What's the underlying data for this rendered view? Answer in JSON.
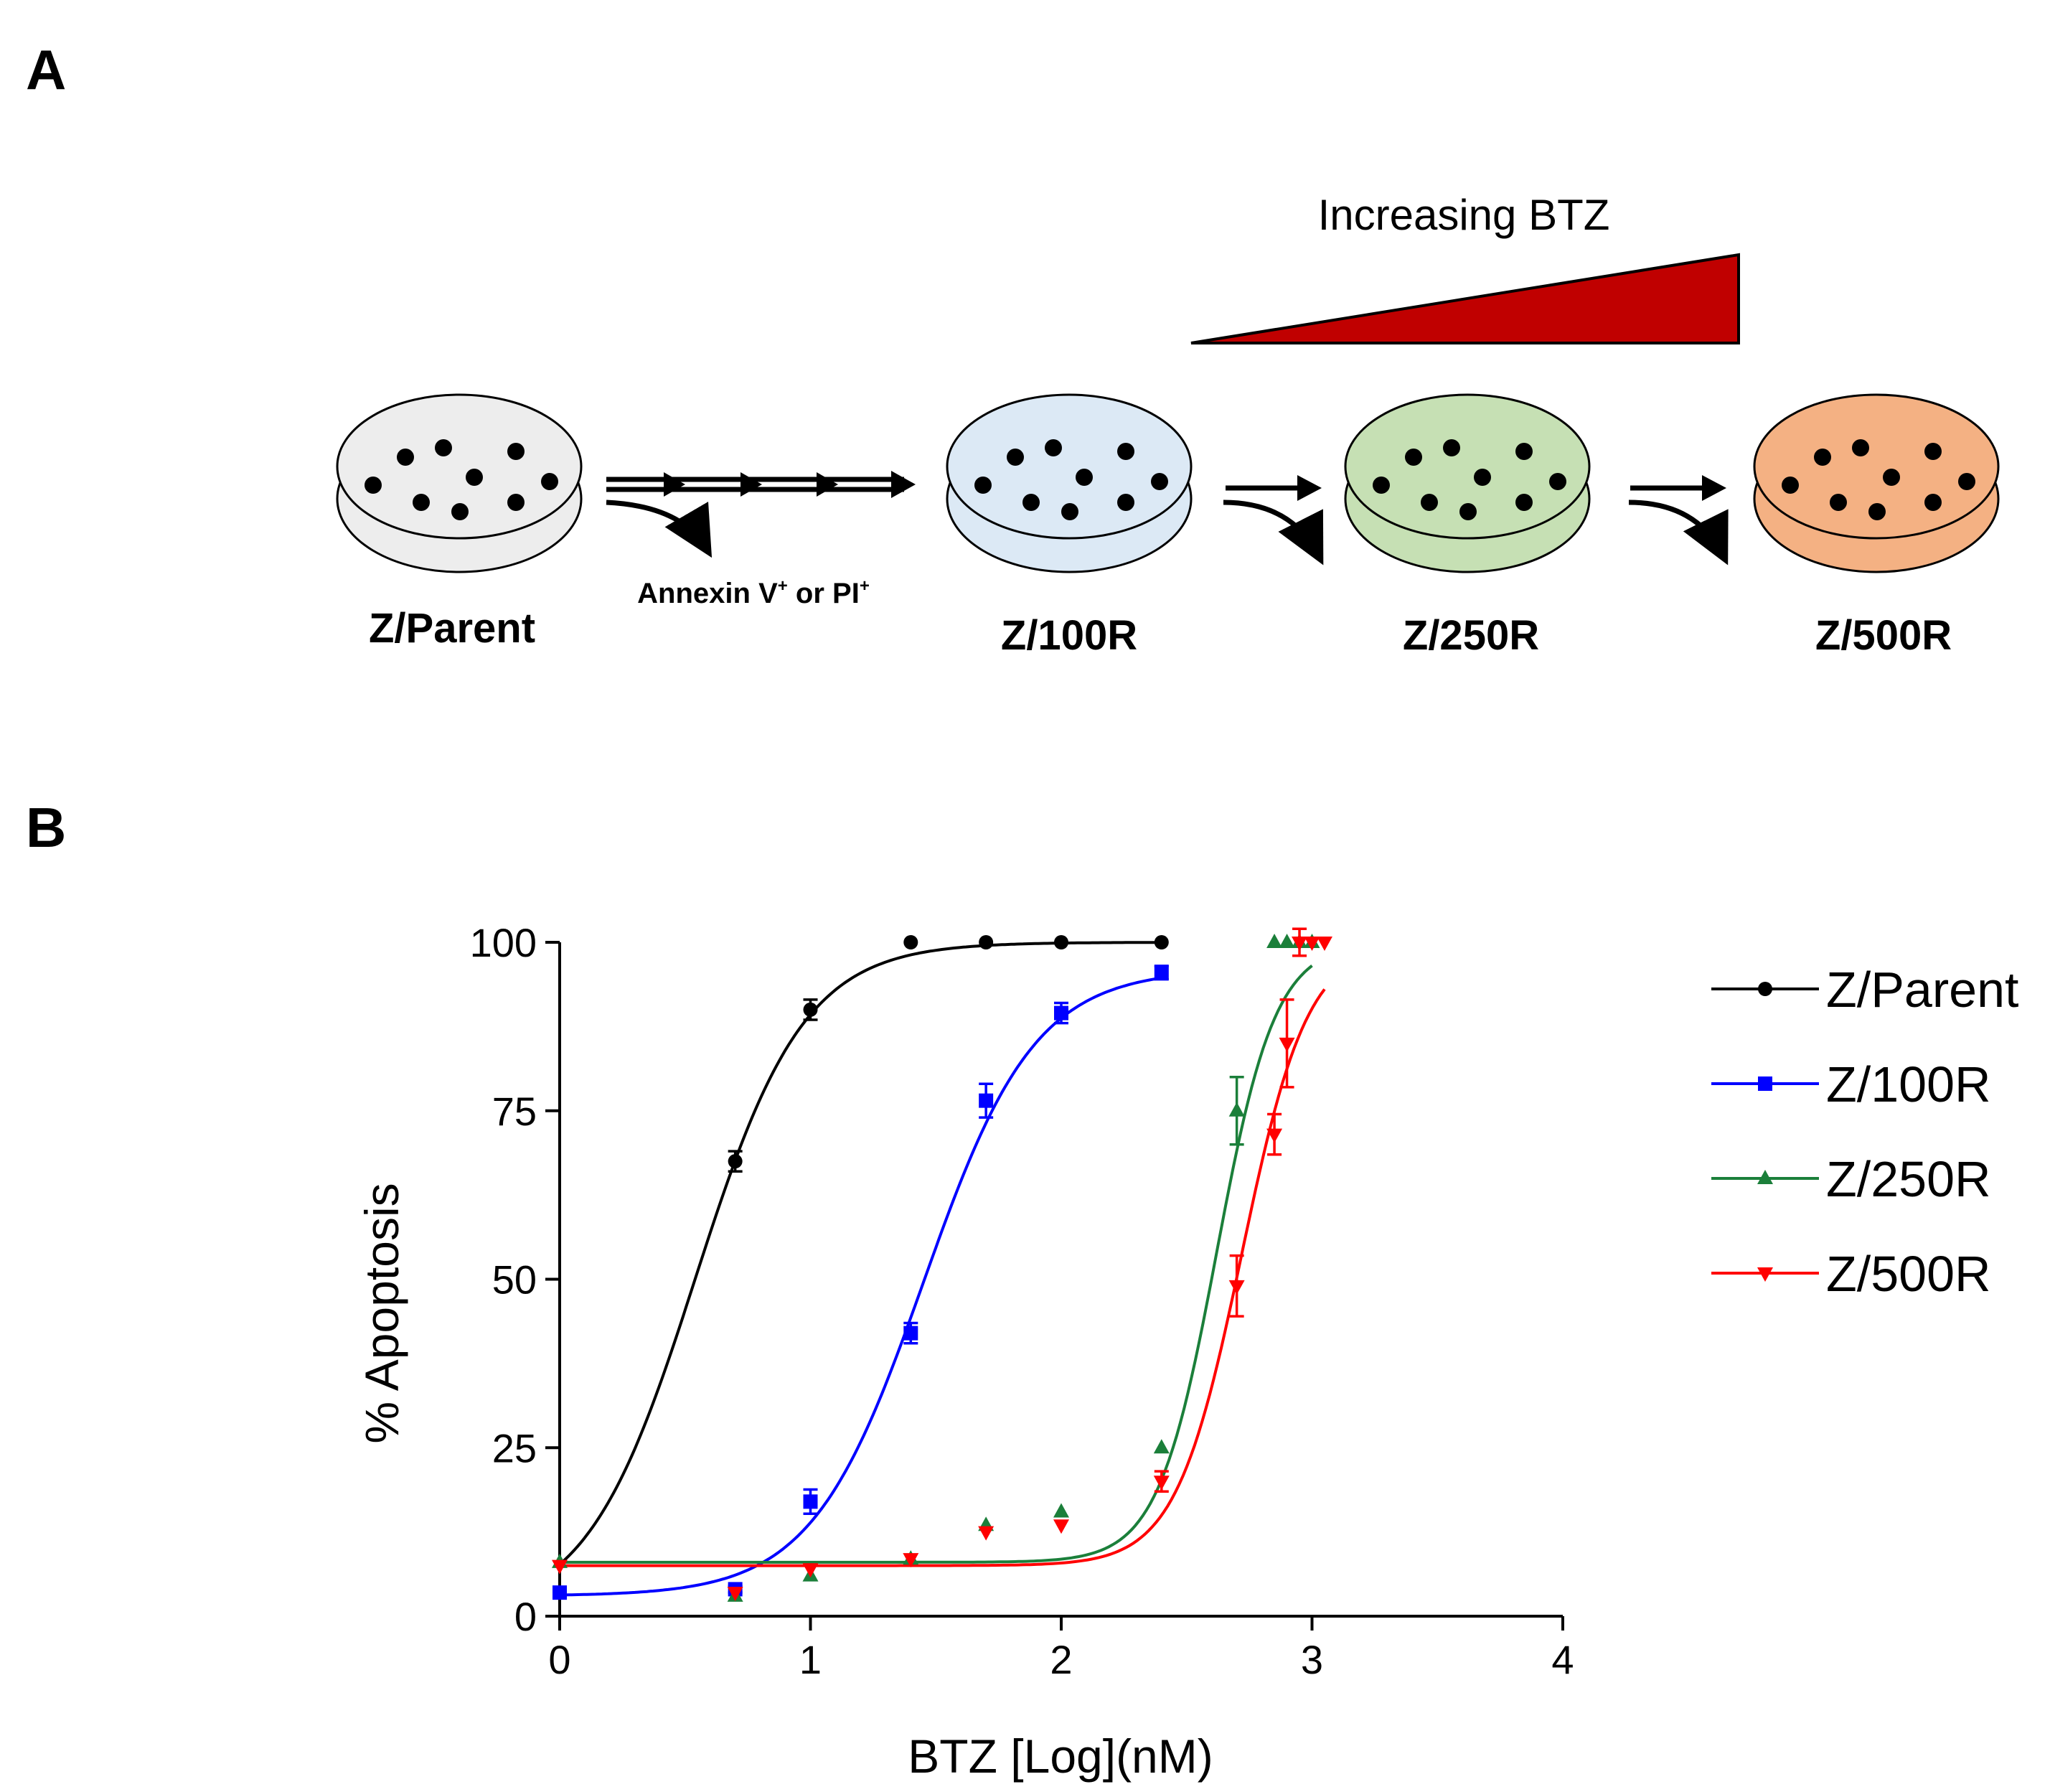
{
  "panels": {
    "a_label": "A",
    "b_label": "B"
  },
  "schematic": {
    "gradient_label": "Increasing BTZ",
    "gradient_color": "#C00000",
    "selection_label_main": "Annexin V",
    "selection_label_sup1": "+",
    "selection_label_mid": " or PI",
    "selection_label_sup2": "+",
    "dishes": [
      {
        "label": "Z/Parent",
        "fill": "#EDEDED"
      },
      {
        "label": "Z/100R",
        "fill": "#DCE9F5"
      },
      {
        "label": "Z/250R",
        "fill": "#C6E0B4"
      },
      {
        "label": "Z/500R",
        "fill": "#F4B183"
      }
    ]
  },
  "chart_data": {
    "type": "scatter",
    "title": "",
    "xlabel": "BTZ [Log](nM)",
    "ylabel": "% Apoptosis",
    "xlim": [
      0,
      4
    ],
    "ylim": [
      0,
      100
    ],
    "xticks": [
      "0",
      "1",
      "2",
      "3",
      "4"
    ],
    "yticks": [
      "0",
      "25",
      "50",
      "75",
      "100"
    ],
    "legend_position": "right",
    "grid": false,
    "series": [
      {
        "name": "Z/Parent",
        "color": "#000000",
        "marker": "circle",
        "points": [
          [
            0,
            3.5,
            0.5
          ],
          [
            0.7,
            67.5,
            1.5
          ],
          [
            1.0,
            90,
            1.5
          ],
          [
            1.4,
            100,
            0
          ],
          [
            1.7,
            100,
            0
          ],
          [
            2.0,
            100,
            0
          ],
          [
            2.4,
            100,
            0
          ]
        ],
        "fit": {
          "bottom": 0,
          "top": 100,
          "logec50": 0.54,
          "hill": 2.0
        }
      },
      {
        "name": "Z/100R",
        "color": "#0000FF",
        "marker": "square",
        "points": [
          [
            0,
            3.5,
            0.5
          ],
          [
            0.7,
            4,
            0.5
          ],
          [
            1.0,
            17,
            1.8
          ],
          [
            1.4,
            42,
            1.5
          ],
          [
            1.7,
            76.5,
            2.5
          ],
          [
            2.0,
            89.5,
            1.5
          ],
          [
            2.4,
            95.5,
            1.0
          ]
        ],
        "fit": {
          "bottom": 3.0,
          "top": 96.0,
          "logec50": 1.45,
          "hill": 1.95
        }
      },
      {
        "name": "Z/250R",
        "color": "#1B7F3A",
        "marker": "triangle-up",
        "points": [
          [
            0,
            8,
            0
          ],
          [
            0.7,
            3,
            0
          ],
          [
            1.0,
            6,
            0
          ],
          [
            1.4,
            8.5,
            0
          ],
          [
            1.7,
            13.5,
            0
          ],
          [
            2.0,
            15.5,
            0
          ],
          [
            2.4,
            25,
            0
          ],
          [
            2.7,
            75,
            5
          ],
          [
            2.85,
            100,
            0
          ],
          [
            2.9,
            100,
            0
          ],
          [
            2.95,
            100,
            0
          ],
          [
            3.0,
            100,
            0
          ]
        ],
        "fit": {
          "bottom": 8.0,
          "top": 100,
          "logec50": 2.62,
          "hill": 3.7
        }
      },
      {
        "name": "Z/500R",
        "color": "#FF0000",
        "marker": "triangle-down",
        "points": [
          [
            0,
            7.5,
            0
          ],
          [
            0.7,
            3.5,
            0
          ],
          [
            1.0,
            7,
            0
          ],
          [
            1.4,
            8.5,
            0
          ],
          [
            1.7,
            12.5,
            0
          ],
          [
            2.0,
            13.5,
            0
          ],
          [
            2.4,
            20,
            1.5
          ],
          [
            2.7,
            49,
            4.5
          ],
          [
            2.85,
            71.5,
            3
          ],
          [
            2.9,
            85,
            6.5
          ],
          [
            2.95,
            100,
            2
          ],
          [
            3.0,
            100,
            0
          ],
          [
            3.05,
            100,
            0
          ]
        ],
        "fit": {
          "bottom": 7.5,
          "top": 100,
          "logec50": 2.72,
          "hill": 3.3
        }
      }
    ]
  }
}
